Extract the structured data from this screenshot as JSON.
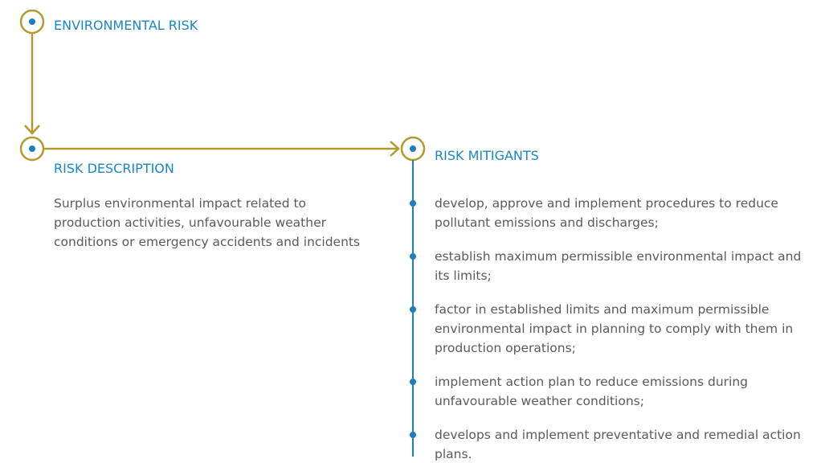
{
  "risk": {
    "title": "ENVIRONMENTAL RISK"
  },
  "description": {
    "title": "RISK DESCRIPTION",
    "text": "Surplus environmental impact related to production activities, unfavourable weather conditions or emergency accidents and incidents"
  },
  "mitigants": {
    "title": "RISK MITIGANTS",
    "items": [
      "develop, approve and implement procedures to reduce pollutant emissions and discharges;",
      "establish maximum permissible environmental impact and its limits;",
      "factor in established limits and maximum permissible environmental impact in planning to comply with them in production operations;",
      "implement action plan to reduce emissions during unfavourable weather conditions;",
      "develops and implement preventative and remedial action plans."
    ]
  }
}
